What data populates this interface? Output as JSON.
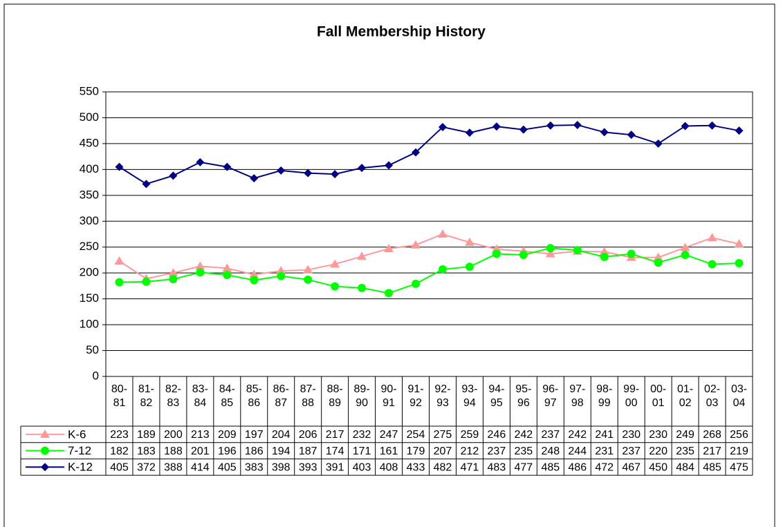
{
  "chart_data": {
    "type": "line",
    "title": "Fall Membership History",
    "categories": [
      "80-81",
      "81-82",
      "82-83",
      "83-84",
      "84-85",
      "85-86",
      "86-87",
      "87-88",
      "88-89",
      "89-90",
      "90-91",
      "91-92",
      "92-93",
      "93-94",
      "94-95",
      "95-96",
      "96-97",
      "97-98",
      "98-99",
      "99-00",
      "00-01",
      "01-02",
      "02-03",
      "03-04"
    ],
    "series": [
      {
        "name": "K-6",
        "color": "#ff9999",
        "marker": "triangle",
        "values": [
          223,
          189,
          200,
          213,
          209,
          197,
          204,
          206,
          217,
          232,
          247,
          254,
          275,
          259,
          246,
          242,
          237,
          242,
          241,
          230,
          230,
          249,
          268,
          256
        ]
      },
      {
        "name": "7-12",
        "color": "#00ff00",
        "marker": "circle",
        "values": [
          182,
          183,
          188,
          201,
          196,
          186,
          194,
          187,
          174,
          171,
          161,
          179,
          207,
          212,
          237,
          235,
          248,
          244,
          231,
          237,
          220,
          235,
          217,
          219
        ]
      },
      {
        "name": "K-12",
        "color": "#000080",
        "marker": "diamond",
        "values": [
          405,
          372,
          388,
          414,
          405,
          383,
          398,
          393,
          391,
          403,
          408,
          433,
          482,
          471,
          483,
          477,
          485,
          486,
          472,
          467,
          450,
          484,
          485,
          475
        ]
      }
    ],
    "ylim": [
      0,
      550
    ],
    "yticks": [
      0,
      50,
      100,
      150,
      200,
      250,
      300,
      350,
      400,
      450,
      500,
      550
    ],
    "grid": true
  }
}
